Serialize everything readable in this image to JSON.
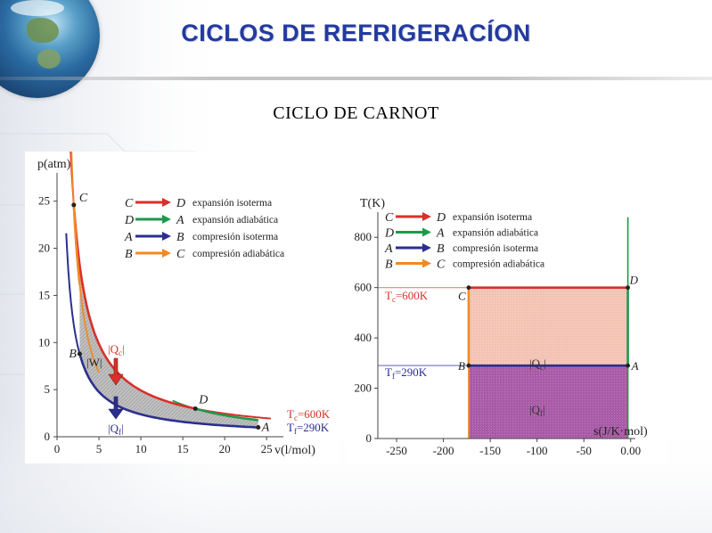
{
  "slide": {
    "title": "CICLOS DE REFRIGERACÍON",
    "subtitle": "CICLO  DE CARNOT"
  },
  "colors": {
    "title": "#233a9e",
    "red": "#d9302a",
    "green": "#1c9a4a",
    "blue": "#2b2f8f",
    "orange": "#f08a25",
    "fill_hot": "#f3c3b4",
    "fill_cold": "#a85aa6"
  },
  "pv_chart": {
    "ylabel": "p(atm)",
    "xlabel": "v(l/mol)",
    "x_ticks": [
      "0",
      "5",
      "10",
      "15",
      "20",
      "25"
    ],
    "y_ticks": [
      "0",
      "5",
      "10",
      "15",
      "20",
      "25"
    ],
    "legend": [
      {
        "from": "C",
        "to": "D",
        "text": "expansión isoterma",
        "color": "red"
      },
      {
        "from": "D",
        "to": "A",
        "text": "expansión adiabática",
        "color": "green"
      },
      {
        "from": "A",
        "to": "B",
        "text": "compresión isoterma",
        "color": "blue"
      },
      {
        "from": "B",
        "to": "C",
        "text": "compresión adiabática",
        "color": "orange"
      }
    ],
    "points": {
      "A": "A",
      "B": "B",
      "C": "C",
      "D": "D"
    },
    "labels": {
      "Qc": "|Q",
      "Qc_sub": "c",
      "Qf": "|Q",
      "Qf_sub": "f",
      "W": "|W|",
      "Tc": "T",
      "Tc_sub": "c",
      "Tc_val": "=600K",
      "Tf": "T",
      "Tf_sub": "f",
      "Tf_val": "=290K"
    },
    "chart_data": {
      "type": "line",
      "xlabel": "v(l/mol)",
      "ylabel": "p(atm)",
      "xlim": [
        0,
        27
      ],
      "ylim": [
        0,
        28
      ],
      "series": [
        {
          "name": "C→D expansión isoterma",
          "color": "red",
          "x": [
            2.0,
            4,
            6,
            8,
            10,
            12,
            14,
            16.5
          ],
          "y": [
            24.6,
            12.3,
            8.2,
            6.15,
            4.92,
            4.1,
            3.5,
            2.98
          ]
        },
        {
          "name": "D→A expansión adiabática",
          "color": "green",
          "x": [
            16.5,
            18,
            20,
            22,
            24
          ],
          "y": [
            2.98,
            2.3,
            1.65,
            1.2,
            0.99
          ]
        },
        {
          "name": "A→B compresión isoterma",
          "color": "blue",
          "x": [
            24,
            20,
            16,
            12,
            8,
            6,
            4,
            2.7
          ],
          "y": [
            0.99,
            1.19,
            1.49,
            1.98,
            2.97,
            3.97,
            5.95,
            8.8
          ]
        },
        {
          "name": "B→C compresión adiabática",
          "color": "orange",
          "x": [
            2.7,
            2.5,
            2.3,
            2.15,
            2.0
          ],
          "y": [
            8.8,
            11.5,
            15.5,
            20,
            24.6
          ]
        }
      ],
      "points": [
        {
          "label": "C",
          "x": 2.0,
          "y": 24.6
        },
        {
          "label": "D",
          "x": 16.5,
          "y": 2.98
        },
        {
          "label": "A",
          "x": 24,
          "y": 0.99
        },
        {
          "label": "B",
          "x": 2.7,
          "y": 8.8
        }
      ]
    }
  },
  "ts_chart": {
    "ylabel": "T(K)",
    "xlabel": "s(J/K·mol)",
    "x_ticks": [
      "-250",
      "-200",
      "-150",
      "-100",
      "-50",
      "0.00"
    ],
    "y_ticks": [
      "0",
      "200",
      "400",
      "600",
      "800"
    ],
    "legend": [
      {
        "from": "C",
        "to": "D",
        "text": "expansión isoterma",
        "color": "red"
      },
      {
        "from": "D",
        "to": "A",
        "text": "expansión adiabática",
        "color": "green"
      },
      {
        "from": "A",
        "to": "B",
        "text": "compresión isoterma",
        "color": "blue"
      },
      {
        "from": "B",
        "to": "C",
        "text": "compresión adiabática",
        "color": "orange"
      }
    ],
    "labels": {
      "Tc": "T",
      "Tc_sub": "c",
      "Tc_val": "=600K",
      "Tf": "T",
      "Tf_sub": "f",
      "Tf_val": "=290K",
      "Qc": "|Q",
      "Qc_sub": "c",
      "Qf": "|Q",
      "Qf_sub": "f"
    },
    "chart_data": {
      "type": "area",
      "xlabel": "s(J/K·mol)",
      "ylabel": "T(K)",
      "xlim": [
        -270,
        5
      ],
      "ylim": [
        0,
        900
      ],
      "series": [
        {
          "name": "C→D expansión isoterma",
          "color": "red",
          "x": [
            -173,
            -3
          ],
          "y": [
            600,
            600
          ]
        },
        {
          "name": "D→A expansión adiabática",
          "color": "green",
          "x": [
            -3,
            -3
          ],
          "y": [
            600,
            290
          ]
        },
        {
          "name": "A→B compresión isoterma",
          "color": "blue",
          "x": [
            -3,
            -173
          ],
          "y": [
            290,
            290
          ]
        },
        {
          "name": "B→C compresión adiabática",
          "color": "orange",
          "x": [
            -173,
            -173
          ],
          "y": [
            290,
            600
          ]
        }
      ],
      "points": [
        {
          "label": "C",
          "x": -173,
          "y": 600
        },
        {
          "label": "D",
          "x": -3,
          "y": 600
        },
        {
          "label": "A",
          "x": -3,
          "y": 290
        },
        {
          "label": "B",
          "x": -173,
          "y": 290
        }
      ]
    }
  }
}
